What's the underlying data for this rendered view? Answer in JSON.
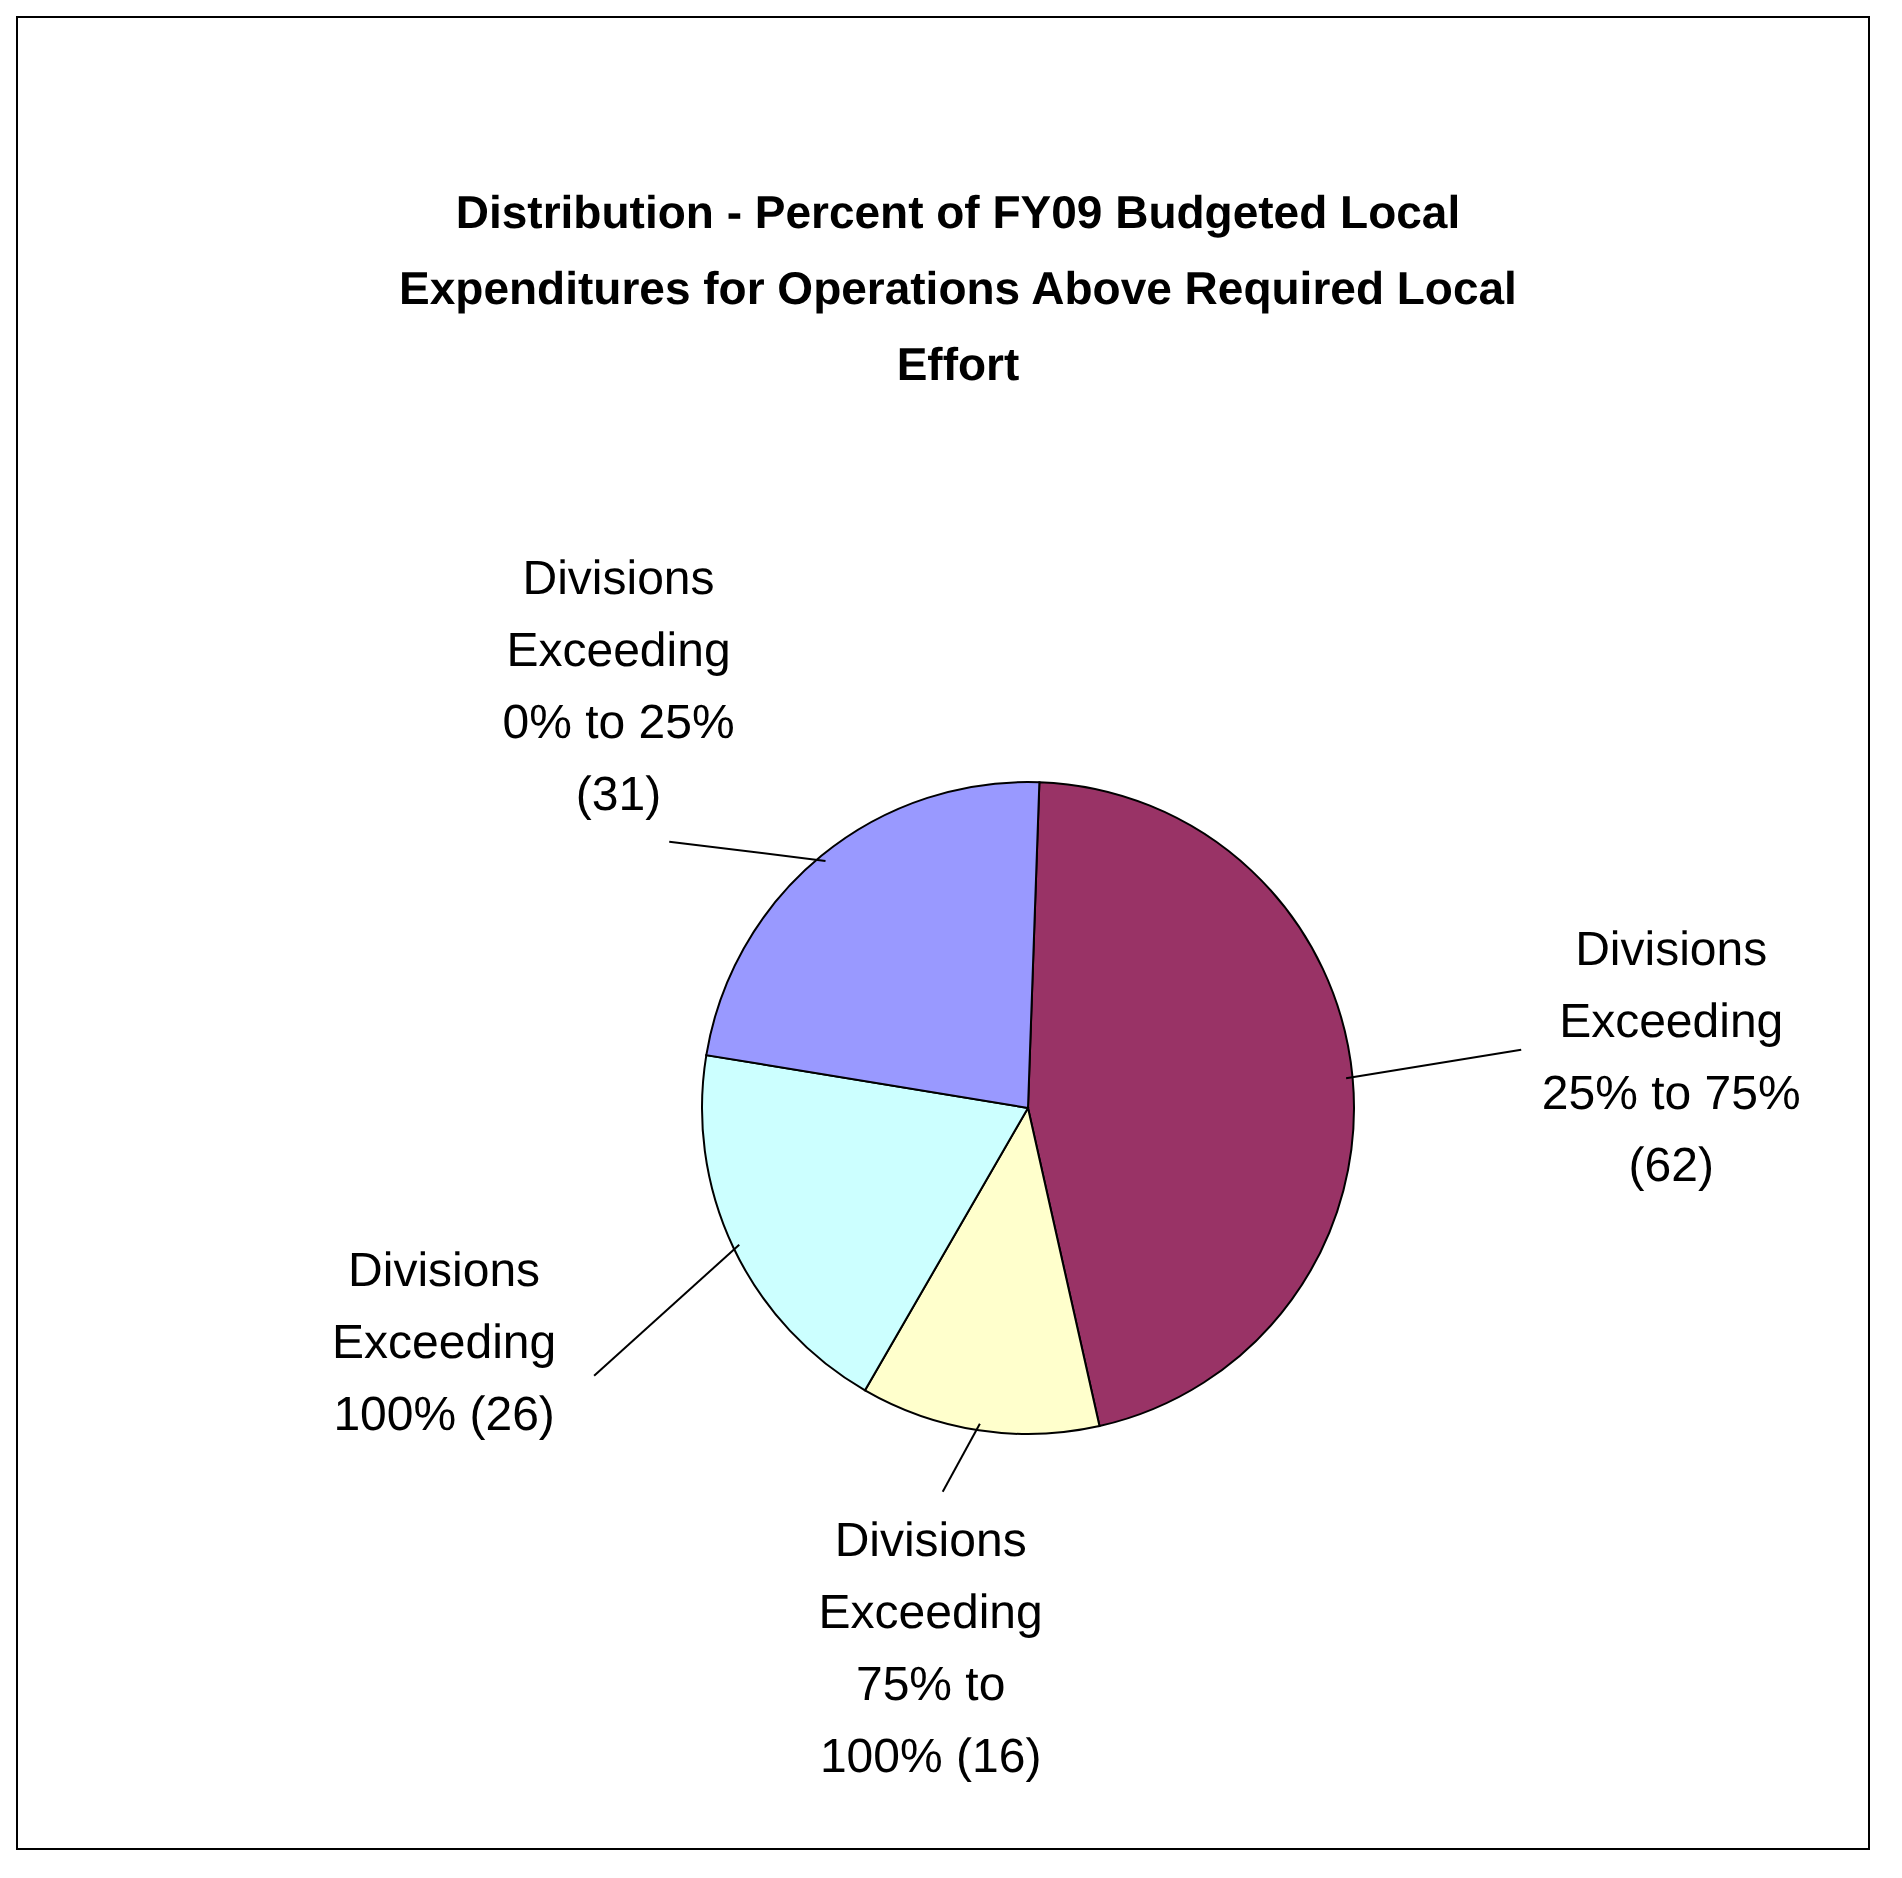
{
  "chart_data": {
    "type": "pie",
    "title": "Distribution - Percent of FY09 Budgeted Local Expenditures for Operations Above Required Local Effort",
    "categories": [
      "Divisions Exceeding 25% to 75%",
      "Divisions Exceeding 75% to 100%",
      "Divisions Exceeding 100%",
      "Divisions Exceeding 0% to 25%"
    ],
    "values": [
      62,
      16,
      26,
      31
    ],
    "value_labels": [
      "(62)",
      "(16)",
      "(26)",
      "(31)"
    ],
    "colors": [
      "#993366",
      "#ffffcc",
      "#ccffff",
      "#9999ff"
    ],
    "legend": false
  }
}
